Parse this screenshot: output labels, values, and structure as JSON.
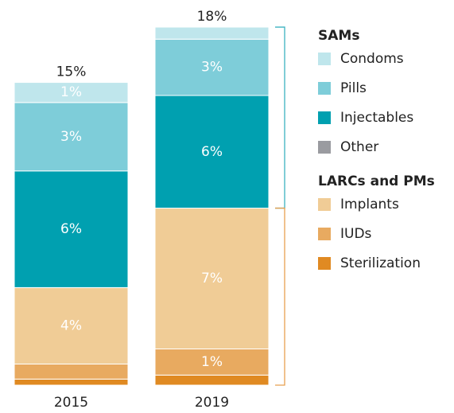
{
  "chart_data": {
    "type": "stacked-bar",
    "categories": [
      "2015",
      "2019"
    ],
    "totals": [
      15,
      18
    ],
    "total_labels": [
      "15%",
      "18%"
    ],
    "ylim": [
      0,
      18
    ],
    "series": [
      {
        "name": "Condoms",
        "color": "#bfe6ec",
        "values": [
          1.0,
          0.6
        ],
        "value_labels": [
          "1%",
          null
        ]
      },
      {
        "name": "Pills",
        "color": "#7ecdd9",
        "values": [
          3.4,
          2.8
        ],
        "value_labels": [
          "3%",
          "3%"
        ]
      },
      {
        "name": "Injectables",
        "color": "#00a0b0",
        "values": [
          5.8,
          5.6
        ],
        "value_labels": [
          "6%",
          "6%"
        ]
      },
      {
        "name": "Other",
        "color": "#9a9ba0",
        "values": [
          0,
          0
        ],
        "value_labels": [
          null,
          null
        ]
      },
      {
        "name": "Implants",
        "color": "#f0cc96",
        "values": [
          3.8,
          7.0
        ],
        "value_labels": [
          "4%",
          "7%"
        ]
      },
      {
        "name": "IUDs",
        "color": "#e8aa60",
        "values": [
          0.75,
          1.3
        ],
        "value_labels": [
          null,
          "1%"
        ]
      },
      {
        "name": "Sterilization",
        "color": "#e08a22",
        "values": [
          0.3,
          0.5
        ],
        "value_labels": [
          null,
          null
        ]
      }
    ],
    "legend_groups": [
      {
        "title": "SAMs",
        "color": "#3bb2c0",
        "members": [
          0,
          1,
          2,
          3
        ]
      },
      {
        "title": "LARCs and PMs",
        "color": "#e8a050",
        "members": [
          4,
          5,
          6
        ]
      }
    ]
  }
}
